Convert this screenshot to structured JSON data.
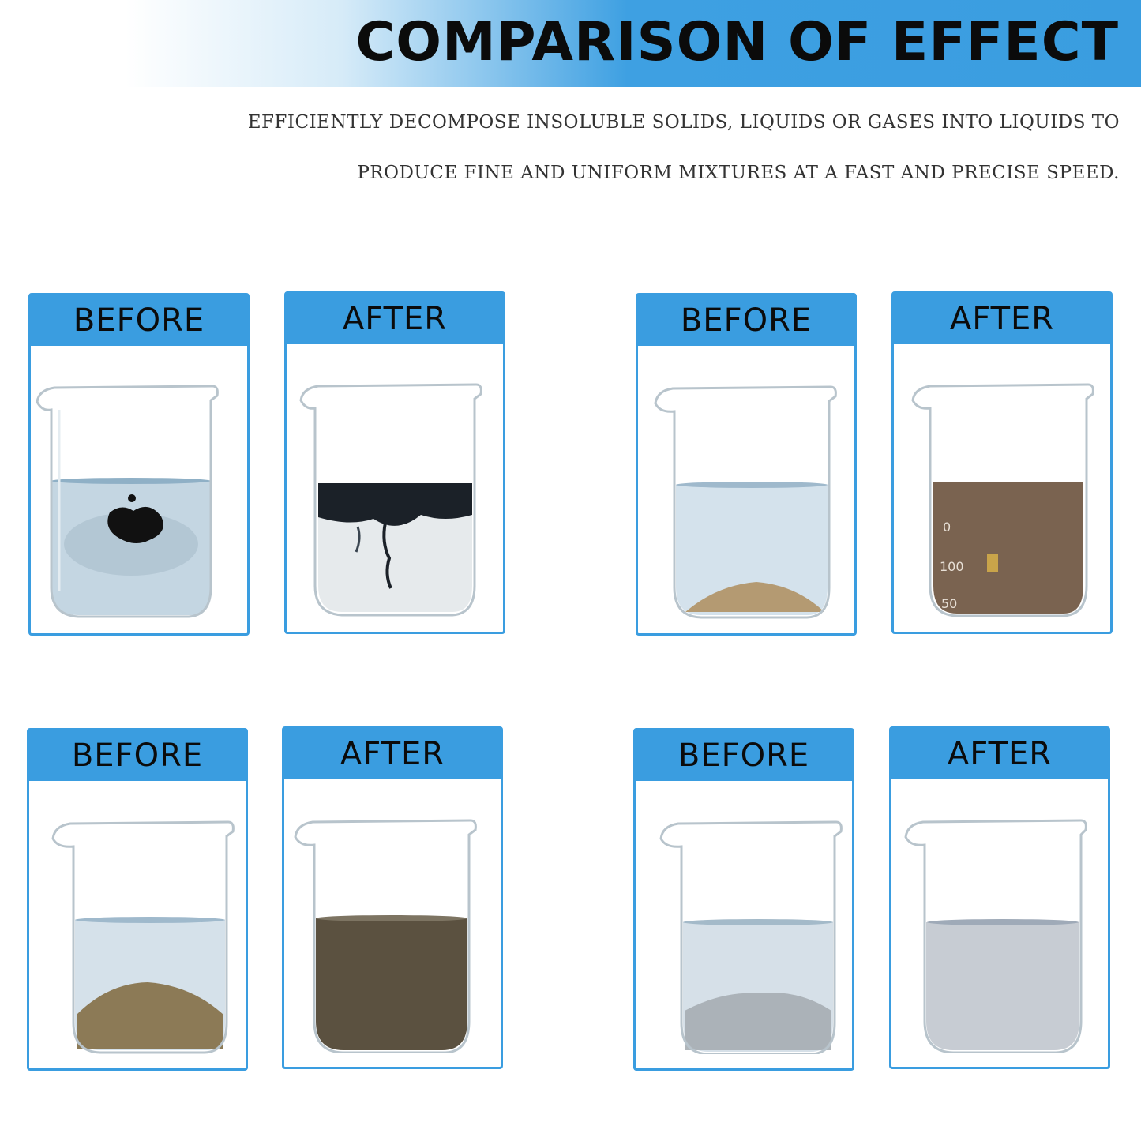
{
  "header": {
    "title": "COMPARISON OF EFFECT",
    "description_line1": "EFFICIENTLY DECOMPOSE INSOLUBLE SOLIDS, LIQUIDS OR GASES INTO LIQUIDS TO",
    "description_line2": "PRODUCE FINE AND UNIFORM MIXTURES AT A FAST AND PRECISE SPEED."
  },
  "comparisons": [
    {
      "before_label": "BEFORE",
      "after_label": "AFTER",
      "before_content": "ink-drop",
      "after_content": "ink-dispersed"
    },
    {
      "before_label": "BEFORE",
      "after_label": "AFTER",
      "before_content": "sand-sediment",
      "after_content": "brown-suspension"
    },
    {
      "before_label": "BEFORE",
      "after_label": "AFTER",
      "before_content": "soil-sediment",
      "after_content": "dark-brown-suspension"
    },
    {
      "before_label": "BEFORE",
      "after_label": "AFTER",
      "before_content": "gray-sediment",
      "after_content": "gray-suspension"
    }
  ],
  "beaker_graduations": [
    "0",
    "100",
    "50"
  ],
  "colors": {
    "accent": "#3a9de0",
    "title": "#0b0b0b"
  }
}
